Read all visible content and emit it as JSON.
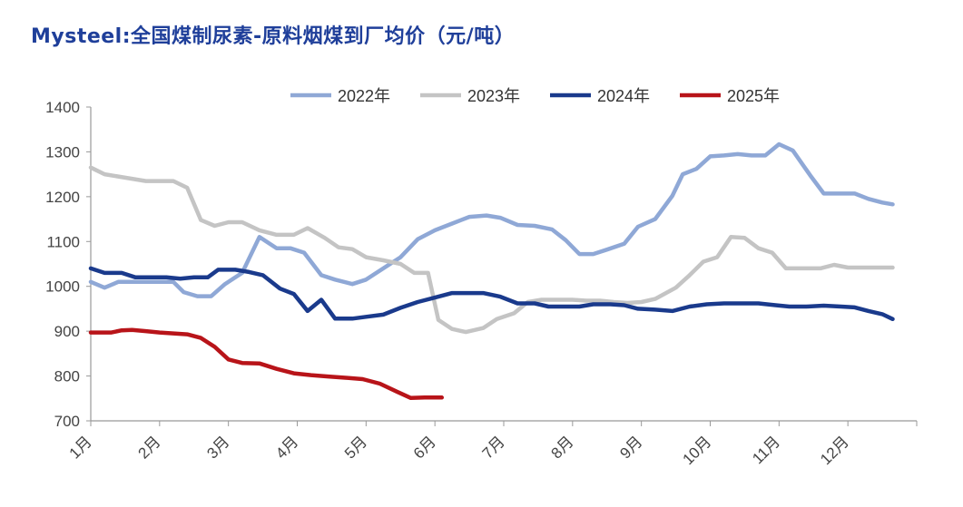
{
  "title": "Mysteel:全国煤制尿素-原料烟煤到厂均价（元/吨）",
  "chart_data": {
    "type": "line",
    "title": "Mysteel:全国煤制尿素-原料烟煤到厂均价（元/吨）",
    "xlabel": "",
    "ylabel": "",
    "ylim": [
      700,
      1400
    ],
    "yticks": [
      700,
      800,
      900,
      1000,
      1100,
      1200,
      1300,
      1400
    ],
    "xlim": [
      0,
      12
    ],
    "xtick_labels": [
      "1月",
      "2月",
      "3月",
      "4月",
      "5月",
      "6月",
      "7月",
      "8月",
      "9月",
      "10月",
      "11月",
      "12月"
    ],
    "legend_position": "top",
    "grid": false,
    "series": [
      {
        "name": "2022年",
        "color": "#8fa8d6",
        "points": [
          [
            0,
            1010
          ],
          [
            0.2,
            997
          ],
          [
            0.4,
            1010
          ],
          [
            0.6,
            1010
          ],
          [
            0.8,
            1010
          ],
          [
            1.0,
            1010
          ],
          [
            1.2,
            1010
          ],
          [
            1.35,
            987
          ],
          [
            1.55,
            978
          ],
          [
            1.75,
            978
          ],
          [
            1.95,
            1005
          ],
          [
            2.2,
            1030
          ],
          [
            2.45,
            1110
          ],
          [
            2.7,
            1085
          ],
          [
            2.9,
            1085
          ],
          [
            3.1,
            1075
          ],
          [
            3.35,
            1025
          ],
          [
            3.55,
            1015
          ],
          [
            3.8,
            1005
          ],
          [
            4.0,
            1015
          ],
          [
            4.25,
            1040
          ],
          [
            4.5,
            1065
          ],
          [
            4.75,
            1105
          ],
          [
            5.0,
            1125
          ],
          [
            5.25,
            1140
          ],
          [
            5.5,
            1155
          ],
          [
            5.75,
            1158
          ],
          [
            5.95,
            1153
          ],
          [
            6.2,
            1137
          ],
          [
            6.45,
            1135
          ],
          [
            6.7,
            1127
          ],
          [
            6.9,
            1103
          ],
          [
            7.1,
            1072
          ],
          [
            7.3,
            1072
          ],
          [
            7.5,
            1082
          ],
          [
            7.75,
            1095
          ],
          [
            7.95,
            1133
          ],
          [
            8.2,
            1150
          ],
          [
            8.45,
            1202
          ],
          [
            8.6,
            1250
          ],
          [
            8.8,
            1262
          ],
          [
            9.0,
            1290
          ],
          [
            9.2,
            1292
          ],
          [
            9.4,
            1295
          ],
          [
            9.6,
            1292
          ],
          [
            9.8,
            1292
          ],
          [
            10.0,
            1317
          ],
          [
            10.2,
            1303
          ],
          [
            10.45,
            1248
          ],
          [
            10.65,
            1207
          ],
          [
            10.85,
            1207
          ],
          [
            11.1,
            1207
          ],
          [
            11.3,
            1195
          ],
          [
            11.5,
            1187
          ],
          [
            11.65,
            1183
          ]
        ]
      },
      {
        "name": "2023年",
        "color": "#c4c4c4",
        "points": [
          [
            0,
            1265
          ],
          [
            0.2,
            1250
          ],
          [
            0.4,
            1245
          ],
          [
            0.6,
            1240
          ],
          [
            0.8,
            1235
          ],
          [
            1.0,
            1235
          ],
          [
            1.2,
            1235
          ],
          [
            1.4,
            1220
          ],
          [
            1.6,
            1148
          ],
          [
            1.8,
            1135
          ],
          [
            2.0,
            1143
          ],
          [
            2.2,
            1143
          ],
          [
            2.45,
            1125
          ],
          [
            2.7,
            1115
          ],
          [
            2.95,
            1115
          ],
          [
            3.15,
            1130
          ],
          [
            3.4,
            1108
          ],
          [
            3.6,
            1087
          ],
          [
            3.8,
            1083
          ],
          [
            4.0,
            1065
          ],
          [
            4.25,
            1058
          ],
          [
            4.5,
            1050
          ],
          [
            4.7,
            1030
          ],
          [
            4.9,
            1030
          ],
          [
            5.05,
            925
          ],
          [
            5.25,
            905
          ],
          [
            5.45,
            898
          ],
          [
            5.7,
            907
          ],
          [
            5.9,
            927
          ],
          [
            6.15,
            940
          ],
          [
            6.35,
            965
          ],
          [
            6.55,
            970
          ],
          [
            6.8,
            970
          ],
          [
            7.0,
            970
          ],
          [
            7.2,
            968
          ],
          [
            7.4,
            968
          ],
          [
            7.6,
            965
          ],
          [
            7.8,
            963
          ],
          [
            8.0,
            965
          ],
          [
            8.2,
            972
          ],
          [
            8.5,
            997
          ],
          [
            8.7,
            1025
          ],
          [
            8.9,
            1055
          ],
          [
            9.1,
            1065
          ],
          [
            9.3,
            1110
          ],
          [
            9.5,
            1108
          ],
          [
            9.7,
            1085
          ],
          [
            9.9,
            1075
          ],
          [
            10.1,
            1040
          ],
          [
            10.35,
            1040
          ],
          [
            10.6,
            1040
          ],
          [
            10.8,
            1048
          ],
          [
            11.0,
            1042
          ],
          [
            11.25,
            1042
          ],
          [
            11.45,
            1042
          ],
          [
            11.65,
            1042
          ]
        ]
      },
      {
        "name": "2024年",
        "color": "#1a3a8c",
        "points": [
          [
            0,
            1040
          ],
          [
            0.2,
            1030
          ],
          [
            0.45,
            1030
          ],
          [
            0.65,
            1020
          ],
          [
            0.85,
            1020
          ],
          [
            1.1,
            1020
          ],
          [
            1.3,
            1017
          ],
          [
            1.5,
            1020
          ],
          [
            1.7,
            1020
          ],
          [
            1.85,
            1037
          ],
          [
            2.1,
            1037
          ],
          [
            2.3,
            1032
          ],
          [
            2.5,
            1025
          ],
          [
            2.75,
            995
          ],
          [
            2.95,
            983
          ],
          [
            3.15,
            945
          ],
          [
            3.35,
            970
          ],
          [
            3.55,
            928
          ],
          [
            3.8,
            928
          ],
          [
            4.0,
            932
          ],
          [
            4.25,
            937
          ],
          [
            4.5,
            952
          ],
          [
            4.75,
            965
          ],
          [
            5.0,
            975
          ],
          [
            5.25,
            985
          ],
          [
            5.45,
            985
          ],
          [
            5.7,
            985
          ],
          [
            5.95,
            977
          ],
          [
            6.2,
            962
          ],
          [
            6.45,
            962
          ],
          [
            6.65,
            955
          ],
          [
            6.9,
            955
          ],
          [
            7.1,
            955
          ],
          [
            7.3,
            960
          ],
          [
            7.55,
            960
          ],
          [
            7.75,
            958
          ],
          [
            7.95,
            950
          ],
          [
            8.2,
            948
          ],
          [
            8.45,
            945
          ],
          [
            8.7,
            955
          ],
          [
            8.95,
            960
          ],
          [
            9.2,
            962
          ],
          [
            9.45,
            962
          ],
          [
            9.7,
            962
          ],
          [
            9.95,
            958
          ],
          [
            10.15,
            955
          ],
          [
            10.4,
            955
          ],
          [
            10.65,
            957
          ],
          [
            10.9,
            955
          ],
          [
            11.1,
            953
          ],
          [
            11.3,
            945
          ],
          [
            11.5,
            938
          ],
          [
            11.65,
            927
          ]
        ]
      },
      {
        "name": "2025年",
        "color": "#b81419",
        "points": [
          [
            0,
            897
          ],
          [
            0.15,
            897
          ],
          [
            0.3,
            897
          ],
          [
            0.45,
            902
          ],
          [
            0.6,
            903
          ],
          [
            0.8,
            900
          ],
          [
            1.0,
            897
          ],
          [
            1.2,
            895
          ],
          [
            1.4,
            893
          ],
          [
            1.6,
            885
          ],
          [
            1.8,
            865
          ],
          [
            2.0,
            837
          ],
          [
            2.2,
            829
          ],
          [
            2.45,
            828
          ],
          [
            2.7,
            816
          ],
          [
            2.95,
            806
          ],
          [
            3.2,
            802
          ],
          [
            3.45,
            799
          ],
          [
            3.7,
            796
          ],
          [
            3.95,
            793
          ],
          [
            4.2,
            783
          ],
          [
            4.45,
            765
          ],
          [
            4.65,
            751
          ],
          [
            4.85,
            752
          ],
          [
            5.1,
            752
          ]
        ]
      }
    ]
  }
}
